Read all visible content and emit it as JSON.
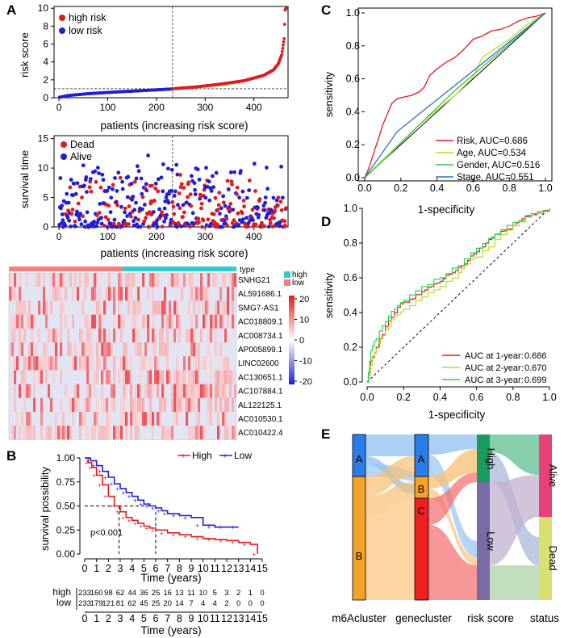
{
  "panel_labels": [
    "A",
    "B",
    "C",
    "D",
    "E"
  ],
  "colors": {
    "high": "#e31a1c",
    "low": "#1f1fd6",
    "heat_high": "#e41a1c",
    "heat_low": "#2020d0",
    "type_high": "#33cccc",
    "type_low": "#f08080"
  },
  "chart_data": [
    {
      "id": "A1",
      "type": "scatter",
      "title": "",
      "xlabel": "patients (increasing risk score)",
      "ylabel": "risk score",
      "xticks": [
        0,
        100,
        200,
        300,
        400
      ],
      "yticks": [
        0,
        2,
        4,
        6,
        8,
        10
      ],
      "xlim": [
        -10,
        470
      ],
      "ylim": [
        0,
        10.2
      ],
      "cutoff_index": 233,
      "cutoff_value": 1.0,
      "n_patients": 466,
      "legend": [
        "high risk",
        "low risk"
      ],
      "anchors_low": [
        [
          1,
          0.05
        ],
        [
          20,
          0.25
        ],
        [
          60,
          0.45
        ],
        [
          120,
          0.65
        ],
        [
          180,
          0.82
        ],
        [
          233,
          0.98
        ]
      ],
      "anchors_high": [
        [
          234,
          1.0
        ],
        [
          280,
          1.2
        ],
        [
          330,
          1.5
        ],
        [
          380,
          1.9
        ],
        [
          420,
          2.5
        ],
        [
          440,
          3.1
        ],
        [
          450,
          3.8
        ],
        [
          457,
          4.8
        ],
        [
          462,
          6.6
        ],
        [
          464,
          9.8
        ],
        [
          466,
          10.0
        ]
      ]
    },
    {
      "id": "A2",
      "type": "scatter",
      "title": "",
      "xlabel": "patients (increasing risk score)",
      "ylabel": "survival time",
      "xticks": [
        0,
        100,
        200,
        300,
        400
      ],
      "yticks": [
        0,
        5,
        10,
        15
      ],
      "xlim": [
        -10,
        470
      ],
      "ylim": [
        0,
        15.5
      ],
      "cutoff_index": 233,
      "legend": [
        "Dead",
        "Alive"
      ],
      "description_only": false
    },
    {
      "id": "A3",
      "type": "heatmap",
      "genes": [
        "SNHG21",
        "AL591686.1",
        "SMG7-AS1",
        "AC018809.1",
        "AC008734.1",
        "AP005899.1",
        "LINC02600",
        "AC130651.1",
        "AC107884.1",
        "AL122125.1",
        "AC010530.1",
        "AC010422.4"
      ],
      "type_label": "type",
      "type_legend": [
        "high",
        "low"
      ],
      "colorbar_ticks": [
        20,
        10,
        0,
        -10,
        -20
      ]
    },
    {
      "id": "B",
      "type": "line",
      "title": "",
      "xlabel": "Time (years)",
      "ylabel": "survival possibility",
      "legend": [
        "High",
        "Low"
      ],
      "annotation": "p<0.001",
      "xticks": [
        0,
        1,
        2,
        3,
        4,
        5,
        6,
        7,
        8,
        9,
        10,
        11,
        12,
        13,
        14,
        15
      ],
      "yticks": [
        "0.00",
        "0.25",
        "0.50",
        "0.75",
        "1.00"
      ],
      "series": [
        {
          "name": "High",
          "x": [
            0,
            0.3,
            0.6,
            1,
            1.5,
            2,
            2.5,
            3,
            3.5,
            4,
            4.5,
            5,
            5.5,
            6,
            7,
            8,
            9,
            10,
            11,
            12,
            13,
            14,
            14.6
          ],
          "y": [
            1.0,
            0.95,
            0.9,
            0.82,
            0.72,
            0.6,
            0.5,
            0.44,
            0.38,
            0.35,
            0.32,
            0.29,
            0.27,
            0.25,
            0.22,
            0.2,
            0.18,
            0.16,
            0.15,
            0.14,
            0.12,
            0.1,
            0.0
          ]
        },
        {
          "name": "Low",
          "x": [
            0,
            0.5,
            1,
            1.5,
            2,
            2.5,
            3,
            3.5,
            4,
            4.5,
            5,
            5.5,
            6,
            6.5,
            7,
            8,
            9,
            10,
            11,
            12,
            13
          ],
          "y": [
            1.0,
            0.97,
            0.92,
            0.86,
            0.8,
            0.73,
            0.68,
            0.64,
            0.6,
            0.56,
            0.52,
            0.5,
            0.48,
            0.45,
            0.42,
            0.4,
            0.38,
            0.3,
            0.28,
            0.28,
            0.28
          ]
        }
      ],
      "risk_table": {
        "time": [
          0,
          1,
          2,
          3,
          4,
          5,
          6,
          7,
          8,
          9,
          10,
          11,
          12,
          13,
          14,
          15
        ],
        "high": [
          "233",
          "160",
          "98",
          "62",
          "44",
          "36",
          "25",
          "16",
          "13",
          "11",
          "10",
          "5",
          "3",
          "2",
          "1",
          "0"
        ],
        "low": [
          "233",
          "179",
          "121",
          "81",
          "62",
          "45",
          "25",
          "20",
          "14",
          "7",
          "4",
          "4",
          "2",
          "0",
          "0",
          "0"
        ],
        "rows": [
          "high",
          "low"
        ]
      }
    },
    {
      "id": "C",
      "type": "line",
      "xlabel": "1-specificity",
      "ylabel": "sensitivity",
      "ticks": [
        "0.0",
        "0.2",
        "0.4",
        "0.6",
        "0.8",
        "1.0"
      ],
      "series": [
        {
          "name": "Risk, AUC=0.686",
          "color": "#e31a1c",
          "x": [
            0,
            0.02,
            0.05,
            0.08,
            0.1,
            0.13,
            0.15,
            0.18,
            0.22,
            0.26,
            0.3,
            0.33,
            0.36,
            0.4,
            0.45,
            0.5,
            0.55,
            0.6,
            0.65,
            0.7,
            0.75,
            0.8,
            0.85,
            0.9,
            0.95,
            1.0
          ],
          "y": [
            0,
            0.05,
            0.15,
            0.25,
            0.32,
            0.4,
            0.45,
            0.48,
            0.49,
            0.5,
            0.52,
            0.55,
            0.62,
            0.66,
            0.7,
            0.73,
            0.78,
            0.84,
            0.86,
            0.89,
            0.9,
            0.92,
            0.95,
            0.97,
            0.98,
            1.0
          ]
        },
        {
          "name": "Age, AUC=0.534",
          "color": "#b8dc2b",
          "x": [
            0,
            0.1,
            0.3,
            0.5,
            0.6,
            0.65,
            0.8,
            0.9,
            1.0
          ],
          "y": [
            0,
            0.1,
            0.32,
            0.5,
            0.61,
            0.73,
            0.84,
            0.93,
            1.0
          ]
        },
        {
          "name": "Gender, AUC=0.516",
          "color": "#3ec23e",
          "x": [
            0,
            0.5,
            1.0
          ],
          "y": [
            0,
            0.53,
            1.0
          ]
        },
        {
          "name": "Stage, AUC=0.551",
          "color": "#2e6fc2",
          "x": [
            0,
            0.18,
            1.0
          ],
          "y": [
            0,
            0.28,
            1.0
          ]
        }
      ]
    },
    {
      "id": "D",
      "type": "line",
      "xlabel": "1-specificity",
      "ylabel": "sensitivity",
      "ticks": [
        "0.0",
        "0.2",
        "0.4",
        "0.6",
        "0.8",
        "1.0"
      ],
      "series": [
        {
          "name": "AUC at 1-year",
          "value": "0.686",
          "color": "#e31a1c",
          "x": [
            0,
            0.02,
            0.05,
            0.1,
            0.15,
            0.2,
            0.25,
            0.3,
            0.35,
            0.4,
            0.45,
            0.5,
            0.55,
            0.6,
            0.65,
            0.7,
            0.75,
            0.8,
            0.85,
            0.9,
            0.95,
            1.0
          ],
          "y": [
            0,
            0.12,
            0.2,
            0.32,
            0.4,
            0.46,
            0.48,
            0.52,
            0.55,
            0.58,
            0.62,
            0.66,
            0.7,
            0.75,
            0.8,
            0.85,
            0.87,
            0.9,
            0.94,
            0.96,
            0.98,
            1.0
          ]
        },
        {
          "name": "AUC at 2-year",
          "value": "0.670",
          "color": "#b8dc2b",
          "x": [
            0,
            0.03,
            0.06,
            0.1,
            0.15,
            0.2,
            0.3,
            0.4,
            0.5,
            0.55,
            0.6,
            0.7,
            0.8,
            0.9,
            1.0
          ],
          "y": [
            0,
            0.15,
            0.22,
            0.3,
            0.38,
            0.42,
            0.49,
            0.55,
            0.63,
            0.68,
            0.72,
            0.82,
            0.9,
            0.96,
            1.0
          ]
        },
        {
          "name": "AUC at 3-year",
          "value": "0.699",
          "color": "#27d45a",
          "x": [
            0,
            0.02,
            0.05,
            0.1,
            0.15,
            0.2,
            0.3,
            0.4,
            0.5,
            0.6,
            0.7,
            0.8,
            0.9,
            1.0
          ],
          "y": [
            0,
            0.18,
            0.25,
            0.35,
            0.42,
            0.47,
            0.55,
            0.6,
            0.67,
            0.77,
            0.85,
            0.92,
            0.97,
            1.0
          ]
        }
      ]
    },
    {
      "id": "E",
      "type": "sankey",
      "axes": [
        "m6Acluster",
        "genecluster",
        "risk score",
        "status"
      ],
      "m6Acluster": [
        "A",
        "B"
      ],
      "genecluster": [
        "A",
        "B",
        "C"
      ],
      "risk": [
        "High",
        "Low"
      ],
      "status": [
        "Alive",
        "Dead"
      ]
    }
  ]
}
